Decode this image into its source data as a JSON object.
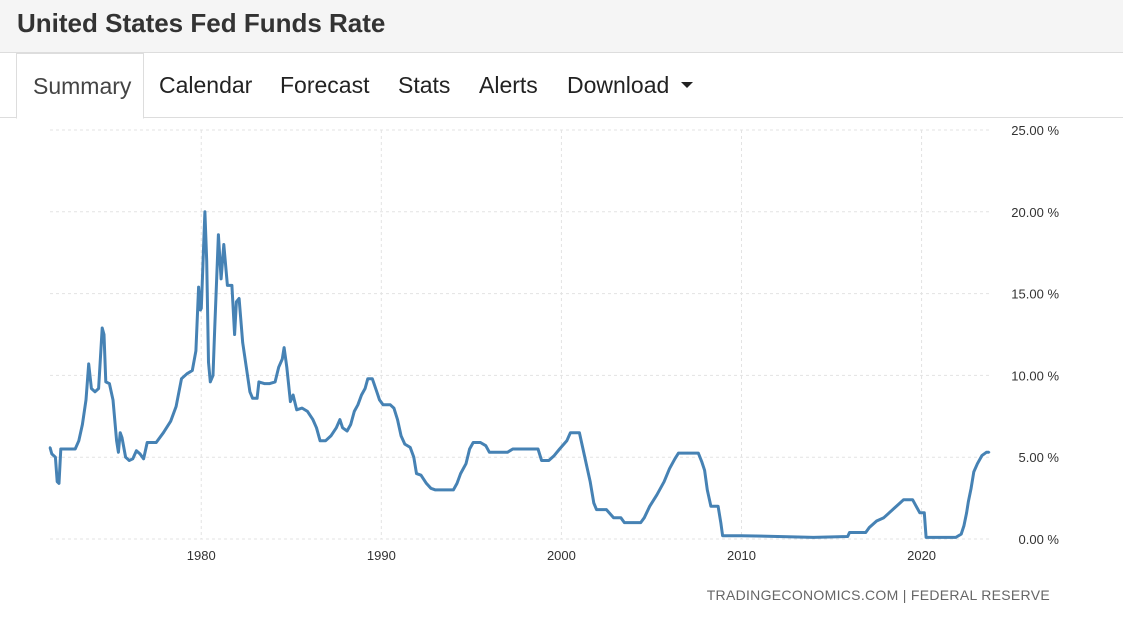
{
  "header": {
    "title": "United States Fed Funds Rate"
  },
  "tabs": [
    {
      "label": "Summary",
      "active": true
    },
    {
      "label": "Calendar"
    },
    {
      "label": "Forecast"
    },
    {
      "label": "Stats"
    },
    {
      "label": "Alerts"
    },
    {
      "label": "Download",
      "dropdown": true
    }
  ],
  "source": "TRADINGECONOMICS.COM  |  FEDERAL RESERVE",
  "chart_data": {
    "type": "line",
    "title": "",
    "xlabel": "",
    "ylabel": "",
    "xlim": [
      1971.6,
      2023.8
    ],
    "ylim": [
      0,
      25
    ],
    "grid": true,
    "y_axis_position": "right",
    "line_color": "#4682b4",
    "yticks": [
      {
        "value": 0,
        "label": "0.00 %"
      },
      {
        "value": 5,
        "label": "5.00 %"
      },
      {
        "value": 10,
        "label": "10.00 %"
      },
      {
        "value": 15,
        "label": "15.00 %"
      },
      {
        "value": 20,
        "label": "20.00 %"
      },
      {
        "value": 25,
        "label": "25.00 %"
      }
    ],
    "xticks": [
      {
        "value": 1980,
        "label": "1980"
      },
      {
        "value": 1990,
        "label": "1990"
      },
      {
        "value": 2000,
        "label": "2000"
      },
      {
        "value": 2010,
        "label": "2010"
      },
      {
        "value": 2020,
        "label": "2020"
      }
    ],
    "series": [
      {
        "points": [
          [
            1971.6,
            5.6
          ],
          [
            1971.7,
            5.2
          ],
          [
            1971.9,
            5.0
          ],
          [
            1972.0,
            3.5
          ],
          [
            1972.1,
            3.4
          ],
          [
            1972.2,
            5.5
          ],
          [
            1972.4,
            5.5
          ],
          [
            1973.0,
            5.5
          ],
          [
            1973.2,
            6.0
          ],
          [
            1973.4,
            7.0
          ],
          [
            1973.6,
            8.5
          ],
          [
            1973.75,
            10.7
          ],
          [
            1973.9,
            9.2
          ],
          [
            1974.1,
            9.0
          ],
          [
            1974.3,
            9.2
          ],
          [
            1974.5,
            12.9
          ],
          [
            1974.6,
            12.5
          ],
          [
            1974.7,
            9.6
          ],
          [
            1974.9,
            9.5
          ],
          [
            1975.1,
            8.5
          ],
          [
            1975.3,
            6.0
          ],
          [
            1975.4,
            5.3
          ],
          [
            1975.5,
            6.5
          ],
          [
            1975.6,
            6.2
          ],
          [
            1975.8,
            5.0
          ],
          [
            1976.0,
            4.8
          ],
          [
            1976.2,
            4.9
          ],
          [
            1976.4,
            5.4
          ],
          [
            1976.6,
            5.2
          ],
          [
            1976.8,
            4.9
          ],
          [
            1977.0,
            5.9
          ],
          [
            1977.5,
            5.9
          ],
          [
            1977.9,
            6.5
          ],
          [
            1978.3,
            7.2
          ],
          [
            1978.6,
            8.1
          ],
          [
            1978.9,
            9.8
          ],
          [
            1979.2,
            10.1
          ],
          [
            1979.5,
            10.3
          ],
          [
            1979.7,
            11.5
          ],
          [
            1979.85,
            15.4
          ],
          [
            1979.95,
            14.0
          ],
          [
            1980.0,
            14.1
          ],
          [
            1980.2,
            20.0
          ],
          [
            1980.3,
            17.0
          ],
          [
            1980.4,
            10.8
          ],
          [
            1980.5,
            9.6
          ],
          [
            1980.65,
            10.0
          ],
          [
            1980.75,
            13.0
          ],
          [
            1980.95,
            18.6
          ],
          [
            1981.1,
            15.9
          ],
          [
            1981.25,
            18.0
          ],
          [
            1981.45,
            15.5
          ],
          [
            1981.7,
            15.5
          ],
          [
            1981.85,
            12.5
          ],
          [
            1981.95,
            14.5
          ],
          [
            1982.1,
            14.7
          ],
          [
            1982.3,
            12.0
          ],
          [
            1982.5,
            10.5
          ],
          [
            1982.7,
            9.0
          ],
          [
            1982.85,
            8.6
          ],
          [
            1983.1,
            8.6
          ],
          [
            1983.2,
            9.6
          ],
          [
            1983.5,
            9.5
          ],
          [
            1983.8,
            9.5
          ],
          [
            1984.1,
            9.6
          ],
          [
            1984.3,
            10.5
          ],
          [
            1984.5,
            11.0
          ],
          [
            1984.6,
            11.7
          ],
          [
            1984.75,
            10.5
          ],
          [
            1984.95,
            8.4
          ],
          [
            1985.1,
            8.8
          ],
          [
            1985.3,
            7.9
          ],
          [
            1985.6,
            8.0
          ],
          [
            1985.9,
            7.8
          ],
          [
            1986.2,
            7.3
          ],
          [
            1986.4,
            6.8
          ],
          [
            1986.6,
            6.0
          ],
          [
            1986.9,
            6.0
          ],
          [
            1987.2,
            6.3
          ],
          [
            1987.5,
            6.8
          ],
          [
            1987.7,
            7.3
          ],
          [
            1987.85,
            6.8
          ],
          [
            1988.1,
            6.6
          ],
          [
            1988.3,
            7.0
          ],
          [
            1988.5,
            7.8
          ],
          [
            1988.7,
            8.2
          ],
          [
            1988.9,
            8.8
          ],
          [
            1989.1,
            9.2
          ],
          [
            1989.25,
            9.8
          ],
          [
            1989.5,
            9.8
          ],
          [
            1989.75,
            9.0
          ],
          [
            1989.9,
            8.5
          ],
          [
            1990.1,
            8.2
          ],
          [
            1990.5,
            8.2
          ],
          [
            1990.7,
            8.0
          ],
          [
            1990.9,
            7.3
          ],
          [
            1991.1,
            6.3
          ],
          [
            1991.3,
            5.8
          ],
          [
            1991.6,
            5.6
          ],
          [
            1991.8,
            5.0
          ],
          [
            1991.95,
            4.0
          ],
          [
            1992.2,
            3.9
          ],
          [
            1992.5,
            3.4
          ],
          [
            1992.75,
            3.1
          ],
          [
            1993.0,
            3.0
          ],
          [
            1993.5,
            3.0
          ],
          [
            1994.0,
            3.0
          ],
          [
            1994.2,
            3.4
          ],
          [
            1994.4,
            4.0
          ],
          [
            1994.7,
            4.6
          ],
          [
            1994.9,
            5.5
          ],
          [
            1995.1,
            5.9
          ],
          [
            1995.5,
            5.9
          ],
          [
            1995.8,
            5.7
          ],
          [
            1996.0,
            5.3
          ],
          [
            1996.5,
            5.3
          ],
          [
            1997.0,
            5.3
          ],
          [
            1997.3,
            5.5
          ],
          [
            1997.8,
            5.5
          ],
          [
            1998.3,
            5.5
          ],
          [
            1998.7,
            5.5
          ],
          [
            1998.9,
            4.8
          ],
          [
            1999.3,
            4.8
          ],
          [
            1999.6,
            5.1
          ],
          [
            1999.9,
            5.5
          ],
          [
            2000.3,
            6.0
          ],
          [
            2000.5,
            6.5
          ],
          [
            2001.0,
            6.5
          ],
          [
            2001.2,
            5.5
          ],
          [
            2001.4,
            4.5
          ],
          [
            2001.6,
            3.5
          ],
          [
            2001.8,
            2.2
          ],
          [
            2001.95,
            1.8
          ],
          [
            2002.5,
            1.8
          ],
          [
            2002.9,
            1.3
          ],
          [
            2003.3,
            1.3
          ],
          [
            2003.5,
            1.0
          ],
          [
            2004.0,
            1.0
          ],
          [
            2004.4,
            1.0
          ],
          [
            2004.6,
            1.3
          ],
          [
            2004.9,
            2.0
          ],
          [
            2005.3,
            2.7
          ],
          [
            2005.7,
            3.5
          ],
          [
            2006.0,
            4.3
          ],
          [
            2006.3,
            4.9
          ],
          [
            2006.5,
            5.25
          ],
          [
            2007.0,
            5.25
          ],
          [
            2007.6,
            5.25
          ],
          [
            2007.8,
            4.7
          ],
          [
            2007.95,
            4.2
          ],
          [
            2008.1,
            3.0
          ],
          [
            2008.3,
            2.0
          ],
          [
            2008.7,
            2.0
          ],
          [
            2008.85,
            1.0
          ],
          [
            2008.95,
            0.2
          ],
          [
            2010.0,
            0.2
          ],
          [
            2012.0,
            0.15
          ],
          [
            2014.0,
            0.1
          ],
          [
            2015.9,
            0.15
          ],
          [
            2016.0,
            0.4
          ],
          [
            2016.9,
            0.4
          ],
          [
            2017.1,
            0.7
          ],
          [
            2017.5,
            1.1
          ],
          [
            2017.9,
            1.3
          ],
          [
            2018.2,
            1.6
          ],
          [
            2018.5,
            1.9
          ],
          [
            2018.8,
            2.2
          ],
          [
            2019.0,
            2.4
          ],
          [
            2019.5,
            2.4
          ],
          [
            2019.7,
            2.0
          ],
          [
            2019.9,
            1.6
          ],
          [
            2020.15,
            1.6
          ],
          [
            2020.25,
            0.1
          ],
          [
            2021.0,
            0.1
          ],
          [
            2021.9,
            0.1
          ],
          [
            2022.2,
            0.3
          ],
          [
            2022.35,
            0.8
          ],
          [
            2022.5,
            1.6
          ],
          [
            2022.6,
            2.3
          ],
          [
            2022.75,
            3.1
          ],
          [
            2022.9,
            4.1
          ],
          [
            2023.1,
            4.6
          ],
          [
            2023.35,
            5.1
          ],
          [
            2023.6,
            5.3
          ],
          [
            2023.75,
            5.3
          ]
        ]
      }
    ]
  }
}
